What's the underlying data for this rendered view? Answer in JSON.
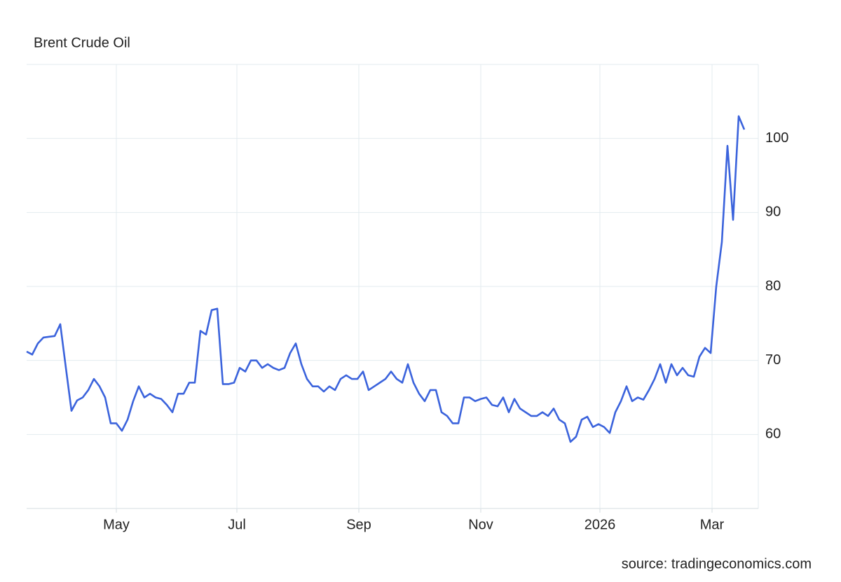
{
  "chart_data": {
    "type": "line",
    "title": "Brent Crude Oil",
    "source": "source: tradingeconomics.com",
    "color": "#3b63dc",
    "grid": true,
    "xlim": [
      0,
      128
    ],
    "xticks": [
      {
        "value": 16,
        "label": "May"
      },
      {
        "value": 37.5,
        "label": "Jul"
      },
      {
        "value": 59.25,
        "label": "Sep"
      },
      {
        "value": 81,
        "label": "Nov"
      },
      {
        "value": 102.25,
        "label": "2026"
      },
      {
        "value": 122.25,
        "label": "Mar"
      }
    ],
    "ylim": [
      50,
      110
    ],
    "yticks": [
      60,
      70,
      80,
      90,
      100
    ],
    "values": [
      71.2,
      70.8,
      72.3,
      73.1,
      73.2,
      73.3,
      74.9,
      69,
      63.2,
      64.6,
      65,
      66,
      67.5,
      66.5,
      65,
      61.5,
      61.5,
      60.5,
      62,
      64.5,
      66.5,
      65,
      65.5,
      65,
      64.8,
      64,
      63,
      65.5,
      65.5,
      67,
      67,
      74,
      73.5,
      76.8,
      77,
      66.8,
      66.8,
      67,
      69,
      68.5,
      70,
      70,
      69,
      69.5,
      69,
      68.7,
      69,
      71,
      72.3,
      69.5,
      67.5,
      66.5,
      66.5,
      65.8,
      66.5,
      66,
      67.5,
      68,
      67.5,
      67.5,
      68.5,
      66,
      66.5,
      67,
      67.5,
      68.5,
      67.5,
      67,
      69.5,
      67,
      65.5,
      64.5,
      66,
      66,
      63,
      62.5,
      61.5,
      61.5,
      65,
      65,
      64.5,
      64.8,
      65,
      64,
      63.8,
      65,
      63,
      64.8,
      63.5,
      63,
      62.5,
      62.5,
      63,
      62.5,
      63.5,
      62,
      61.5,
      59,
      59.7,
      62,
      62.4,
      61,
      61.4,
      61,
      60.2,
      63,
      64.5,
      66.5,
      64.5,
      65,
      64.7,
      66,
      67.5,
      69.5,
      67,
      69.5,
      68,
      69,
      68,
      67.8,
      70.5,
      71.7,
      71,
      80,
      86,
      99,
      89,
      103,
      101.2
    ]
  }
}
